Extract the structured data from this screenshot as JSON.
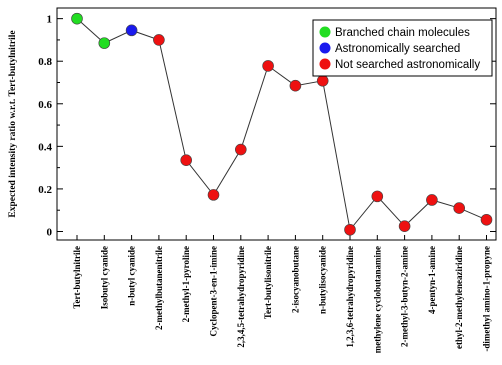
{
  "chart_data": {
    "type": "scatter",
    "ylabel": "Expected intensity ratio w.r.t. Tert-butylnitrile",
    "xlabel": "",
    "ylim": [
      -0.04,
      1.05
    ],
    "yticks": [
      "0",
      "0.2",
      "0.4",
      "0.6",
      "0.8",
      "1"
    ],
    "grid": false,
    "legend_position": "top-right",
    "connected_line": true,
    "categories": [
      "Tert-butylnitrile",
      "Isobutyl cyanide",
      "n-butyl cyanide",
      "2-methylbutanenitrile",
      "2-methyl-1-pyroline",
      "Cyclopent-3-en-1-imine",
      "2,3,4,5-tetrahydropyridine",
      "Tert-butylisonitrile",
      "2-isocyanobutane",
      "n-butylisocyanide",
      "1,2,3,6-tetrahydropyridine",
      "methylene cyclobutanamine",
      "2-methyl-3-butyn-2-amine",
      "4-pentyn-1-amine",
      "ethyl-2-methyleneaziridine",
      "-dimethyl amino-1-propyne"
    ],
    "values": [
      1.0,
      0.885,
      0.945,
      0.9,
      0.335,
      0.172,
      0.385,
      0.778,
      0.685,
      0.708,
      0.008,
      0.165,
      0.025,
      0.148,
      0.11,
      0.055
    ],
    "groups": [
      "branched",
      "branched",
      "astro",
      "not",
      "not",
      "not",
      "not",
      "not",
      "not",
      "not",
      "not",
      "not",
      "not",
      "not",
      "not",
      "not"
    ],
    "legend": [
      {
        "key": "branched",
        "label": "Branched chain molecules",
        "color": "#22dd22"
      },
      {
        "key": "astro",
        "label": "Astronomically searched",
        "color": "#1a1aee"
      },
      {
        "key": "not",
        "label": "Not searched astronomically",
        "color": "#ee1111"
      }
    ]
  }
}
